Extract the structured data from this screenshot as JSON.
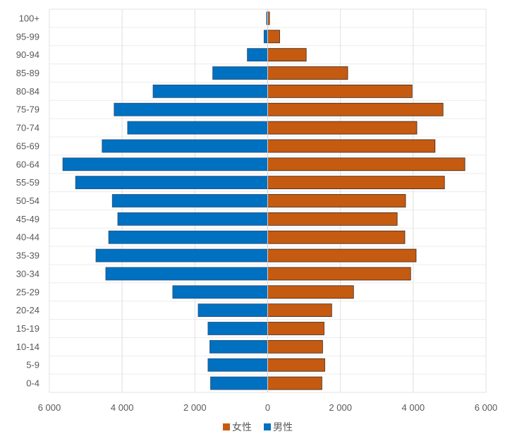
{
  "chart_data": {
    "type": "bar",
    "orientation": "horizontal",
    "subtype": "population-pyramid",
    "categories": [
      "100+",
      "95-99",
      "90-94",
      "85-89",
      "80-84",
      "75-79",
      "70-74",
      "65-69",
      "60-64",
      "55-59",
      "50-54",
      "45-49",
      "40-44",
      "35-39",
      "30-34",
      "25-29",
      "20-24",
      "15-19",
      "10-14",
      "5-9",
      "0-4"
    ],
    "series": [
      {
        "name": "女性",
        "color": "#C55A11",
        "side": "right",
        "values": [
          50,
          330,
          1060,
          2200,
          3970,
          4820,
          4100,
          4600,
          5420,
          4860,
          3790,
          3560,
          3770,
          4080,
          3930,
          2360,
          1760,
          1550,
          1510,
          1570,
          1490
        ]
      },
      {
        "name": "男性",
        "color": "#0070C0",
        "side": "left",
        "values": [
          30,
          100,
          560,
          1510,
          3150,
          4220,
          3850,
          4550,
          5630,
          5280,
          4270,
          4120,
          4370,
          4720,
          4450,
          2610,
          1910,
          1640,
          1590,
          1640,
          1570
        ]
      }
    ],
    "xlim": [
      -6000,
      6000
    ],
    "xticks": [
      -6000,
      -4000,
      -2000,
      0,
      2000,
      4000,
      6000
    ],
    "xtick_labels": [
      "6 000",
      "4 000",
      "2 000",
      "0",
      "2 000",
      "4 000",
      "6 000"
    ],
    "grid": true,
    "legend": "bottom",
    "title": "",
    "xlabel": "",
    "ylabel": ""
  }
}
